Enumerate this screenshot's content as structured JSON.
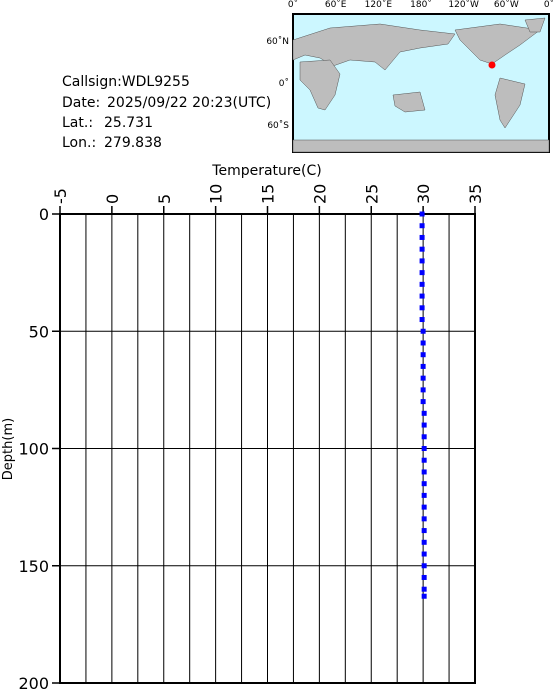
{
  "info": {
    "callsign": "Callsign:WDL9255",
    "date_label": "Date:",
    "date": "2025/09/22 20:23(UTC)",
    "lat_label": "Lat.:",
    "lat": 25.731,
    "lon_label": "Lon.:",
    "lon": 279.838
  },
  "map": {
    "lon_labels": [
      "0˚",
      "60˚E",
      "120˚E",
      "180˚",
      "120˚W",
      "60˚W",
      "0˚"
    ],
    "lat_labels": [
      "60˚N",
      "0˚",
      "60˚S"
    ],
    "marker_color": "#ff0000"
  },
  "chart_data": {
    "type": "scatter",
    "x_label": "Temperature(C)",
    "y_label": "Depth(m)",
    "xlim": [
      -5,
      35
    ],
    "xticks": [
      -5,
      0,
      5,
      10,
      15,
      20,
      25,
      30,
      35
    ],
    "xgrid": [
      -2.5,
      0,
      2.5,
      5,
      7.5,
      10,
      12.5,
      15,
      17.5,
      20,
      22.5,
      25,
      27.5,
      30,
      32.5
    ],
    "ylim": [
      0,
      200
    ],
    "yticks": [
      0,
      50,
      100,
      150,
      200
    ],
    "y_inverted": true,
    "color": "#0000ff",
    "series": [
      {
        "x": [
          29.9,
          29.9,
          29.9,
          29.9,
          29.9,
          29.9,
          29.9,
          29.9,
          29.9,
          29.9,
          30.0,
          30.0,
          30.0,
          30.0,
          30.0,
          30.0,
          30.0,
          30.1,
          30.1,
          30.1,
          30.1,
          30.1,
          30.1,
          30.1,
          30.1,
          30.1,
          30.1,
          30.1,
          30.1,
          30.1,
          30.1,
          30.1,
          30.1,
          30.1
        ],
        "values": [
          0,
          5,
          10,
          15,
          20,
          25,
          30,
          35,
          40,
          45,
          50,
          55,
          60,
          65,
          70,
          75,
          80,
          85,
          90,
          95,
          100,
          105,
          110,
          115,
          120,
          125,
          130,
          135,
          140,
          145,
          150,
          155,
          160,
          163
        ]
      }
    ]
  }
}
